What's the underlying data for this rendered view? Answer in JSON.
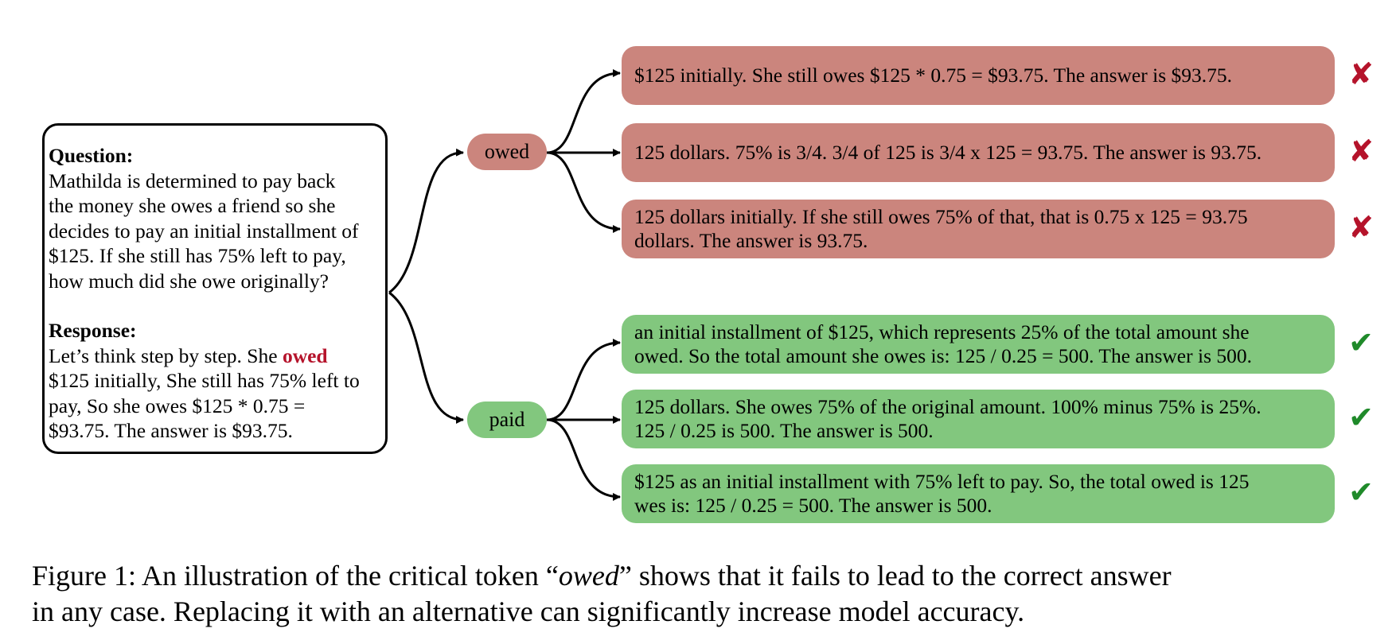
{
  "question": {
    "heading": "Question:",
    "lines": [
      "Mathilda is determined to pay back",
      "the money she owes a friend so she",
      "decides to pay an initial installment of",
      "$125. If she still has 75% left to pay,",
      "how much did she owe originally?"
    ]
  },
  "response": {
    "heading": "Response:",
    "line1_prefix": "Let’s think step by step. She ",
    "critical_token": "owed",
    "lines": [
      "$125 initially, She still has 75% left to",
      "pay, So she owes $125 * 0.75 =",
      "$93.75. The answer is $93.75."
    ]
  },
  "nodes": {
    "owed": {
      "label": "owed",
      "color": "#cb857d"
    },
    "paid": {
      "label": "paid",
      "color": "#82c77e"
    }
  },
  "branches": {
    "owed": [
      {
        "text": "$125 initially. She still owes $125 * 0.75 = $93.75. The answer is $93.75.",
        "mark": "✘"
      },
      {
        "text": "125 dollars. 75% is 3/4. 3/4 of 125 is 3/4 x 125 = 93.75. The answer is 93.75.",
        "mark": "✘"
      },
      {
        "lines": [
          "125 dollars initially. If she still owes 75% of that, that is 0.75 x 125 = 93.75",
          "dollars. The answer is 93.75."
        ],
        "mark": "✘"
      }
    ],
    "paid": [
      {
        "lines": [
          "an initial installment of $125, which represents 25% of the total amount she",
          "owed. So the total amount she owes is: 125 / 0.25 = 500. The answer is 500."
        ],
        "mark": "✔"
      },
      {
        "lines": [
          "125 dollars. She owes 75% of the original amount. 100% minus 75% is 25%.",
          "125 / 0.25 is 500. The answer is 500."
        ],
        "mark": "✔"
      },
      {
        "lines": [
          "$125 as an initial installment with 75% left to pay. So, the total owed is 125",
          "wes is: 125 / 0.25 = 500. The answer is 500."
        ],
        "mark": "✔"
      }
    ]
  },
  "colors": {
    "wrong": "#b5132b",
    "correct": "#1f8a2a"
  },
  "caption": {
    "line1_prefix": "Figure 1: An illustration of the critical token “",
    "token": "owed",
    "line1_suffix": "” shows that it fails to lead to the correct answer",
    "line2": "in any case. Replacing it with an alternative can significantly increase model accuracy."
  }
}
